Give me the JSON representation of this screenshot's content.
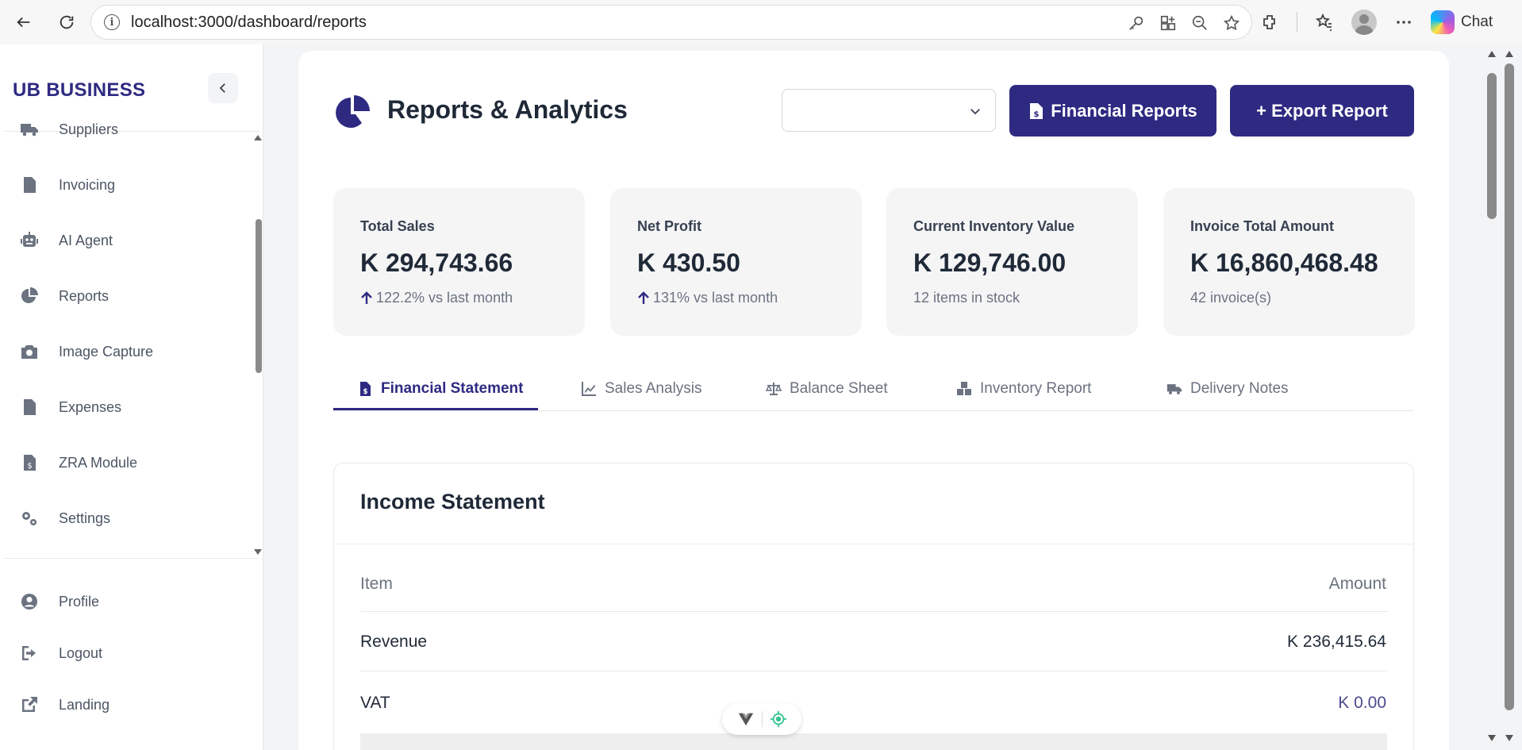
{
  "browser": {
    "url": "localhost:3000/dashboard/reports",
    "chat_label": "Chat"
  },
  "sidebar": {
    "brand": "UB BUSINESS",
    "items": [
      {
        "label": "Suppliers",
        "icon": "truck-icon"
      },
      {
        "label": "Invoicing",
        "icon": "file-invoice-icon"
      },
      {
        "label": "AI Agent",
        "icon": "robot-icon"
      },
      {
        "label": "Reports",
        "icon": "pie-chart-icon"
      },
      {
        "label": "Image Capture",
        "icon": "camera-icon"
      },
      {
        "label": "Expenses",
        "icon": "file-lines-icon"
      },
      {
        "label": "ZRA Module",
        "icon": "file-dollar-icon"
      },
      {
        "label": "Settings",
        "icon": "gears-icon"
      }
    ],
    "footer_items": [
      {
        "label": "Profile",
        "icon": "user-circle-icon"
      },
      {
        "label": "Logout",
        "icon": "logout-icon"
      },
      {
        "label": "Landing",
        "icon": "external-link-icon"
      }
    ]
  },
  "header": {
    "title": "Reports & Analytics",
    "select_value": "",
    "financial_reports_label": "Financial Reports",
    "export_report_label": "+ Export Report"
  },
  "stats": [
    {
      "label": "Total Sales",
      "value": "K 294,743.66",
      "sub": "122.2% vs last month",
      "trend": "up"
    },
    {
      "label": "Net Profit",
      "value": "K 430.50",
      "sub": "131% vs last month",
      "trend": "up"
    },
    {
      "label": "Current Inventory Value",
      "value": "K 129,746.00",
      "sub": "12 items in stock",
      "trend": "none"
    },
    {
      "label": "Invoice Total Amount",
      "value": "K 16,860,468.48",
      "sub": "42 invoice(s)",
      "trend": "none"
    }
  ],
  "tabs": [
    {
      "label": "Financial Statement",
      "icon": "file-invoice-icon",
      "active": true
    },
    {
      "label": "Sales Analysis",
      "icon": "line-chart-icon",
      "active": false
    },
    {
      "label": "Balance Sheet",
      "icon": "scale-icon",
      "active": false
    },
    {
      "label": "Inventory Report",
      "icon": "boxes-icon",
      "active": false
    },
    {
      "label": "Delivery Notes",
      "icon": "truck-icon",
      "active": false
    }
  ],
  "income_statement": {
    "title": "Income Statement",
    "columns": [
      "Item",
      "Amount"
    ],
    "rows": [
      {
        "item": "Revenue",
        "amount": "K 236,415.64"
      },
      {
        "item": "VAT",
        "amount": "K 0.00"
      }
    ]
  },
  "colors": {
    "primary": "#2e2a82",
    "muted_amount": "#4b4b8f"
  }
}
